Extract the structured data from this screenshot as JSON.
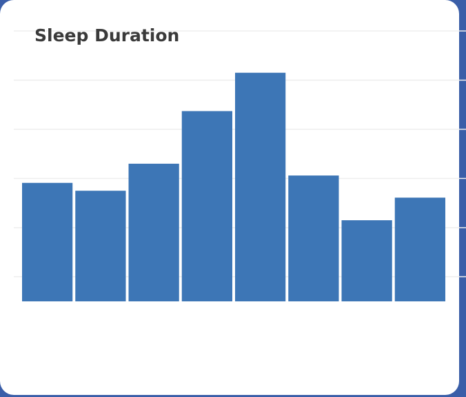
{
  "chart_data": {
    "type": "bar",
    "title": "Sleep Duration",
    "categories": [
      null,
      null,
      null,
      null,
      null,
      null,
      null,
      null
    ],
    "values": [
      2.41,
      2.25,
      2.8,
      3.87,
      4.65,
      2.56,
      1.65,
      2.11
    ],
    "color": "#3d76b6",
    "ylim": [
      0,
      5.5
    ],
    "grid": true
  }
}
